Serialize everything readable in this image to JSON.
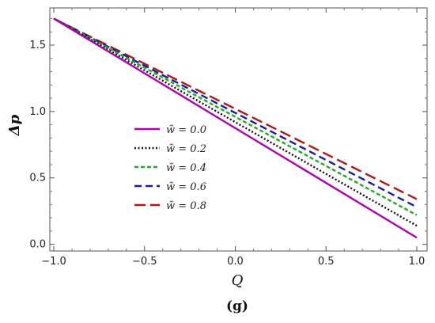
{
  "chart_data": {
    "type": "line",
    "xlabel": "Q",
    "ylabel": "Δp",
    "panel_label": "(g)",
    "xlim": [
      -1.0,
      1.0
    ],
    "ylim": [
      -0.05,
      1.78
    ],
    "xticks": [
      {
        "value": -1.0,
        "label": "−1.0"
      },
      {
        "value": -0.5,
        "label": "−0.5"
      },
      {
        "value": 0.0,
        "label": "0.0"
      },
      {
        "value": 0.5,
        "label": "0.5"
      },
      {
        "value": 1.0,
        "label": "1.0"
      }
    ],
    "yticks": [
      {
        "value": 0.0,
        "label": "0.0"
      },
      {
        "value": 0.5,
        "label": "0.5"
      },
      {
        "value": 1.0,
        "label": "1.0"
      },
      {
        "value": 1.5,
        "label": "1.5"
      }
    ],
    "legend_position": "center-left",
    "series": [
      {
        "name": "w̃ = 0.0",
        "color": "#b000b0",
        "dash": "solid",
        "x": [
          -1.0,
          1.0
        ],
        "y": [
          1.7,
          0.05
        ]
      },
      {
        "name": "w̃ = 0.2",
        "color": "#111111",
        "dash": "dotted",
        "x": [
          -1.0,
          1.0
        ],
        "y": [
          1.7,
          0.14
        ]
      },
      {
        "name": "w̃ = 0.4",
        "color": "#22aa22",
        "dash": "dashed-short",
        "x": [
          -1.0,
          1.0
        ],
        "y": [
          1.7,
          0.22
        ]
      },
      {
        "name": "w̃ = 0.6",
        "color": "#1a1aa8",
        "dash": "dashed",
        "x": [
          -1.0,
          1.0
        ],
        "y": [
          1.7,
          0.28
        ]
      },
      {
        "name": "w̃ = 0.8",
        "color": "#b01818",
        "dash": "dashed-long",
        "x": [
          -1.0,
          1.0
        ],
        "y": [
          1.7,
          0.34
        ]
      }
    ]
  }
}
